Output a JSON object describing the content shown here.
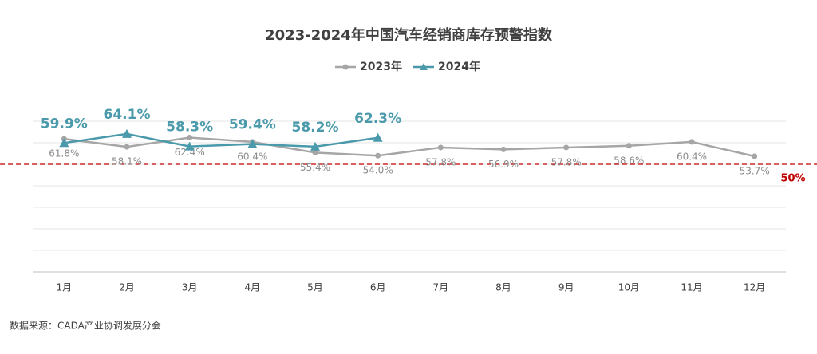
{
  "chart_data": {
    "type": "line",
    "title": "2023-2024年中国汽车经销商库存预警指数",
    "categories": [
      "1月",
      "2月",
      "3月",
      "4月",
      "5月",
      "6月",
      "7月",
      "8月",
      "9月",
      "10月",
      "11月",
      "12月"
    ],
    "series": [
      {
        "name": "2023年",
        "color": "#a6a6a6",
        "values": [
          61.8,
          58.1,
          62.4,
          60.4,
          55.4,
          54.0,
          57.8,
          56.9,
          57.8,
          58.6,
          60.4,
          53.7
        ],
        "value_labels": [
          "61.8%",
          "58.1%",
          "62.4%",
          "60.4%",
          "55.4%",
          "54.0%",
          "57.8%",
          "56.9%",
          "57.8%",
          "58.6%",
          "60.4%",
          "53.7%"
        ]
      },
      {
        "name": "2024年",
        "color": "#4a9aab",
        "values": [
          59.9,
          64.1,
          58.3,
          59.4,
          58.2,
          62.3,
          null,
          null,
          null,
          null,
          null,
          null
        ],
        "value_labels": [
          "59.9%",
          "64.1%",
          "58.3%",
          "59.4%",
          "58.2%",
          "62.3%",
          null,
          null,
          null,
          null,
          null,
          null
        ]
      }
    ],
    "ylim": [
      0,
      70
    ],
    "yticks": [
      0,
      10,
      20,
      30,
      40,
      50,
      60,
      70
    ],
    "grid": true,
    "reference_line": {
      "value": 50,
      "label": "50%",
      "color": "#c00000"
    },
    "source": "数据来源：CADA产业协调发展分会"
  }
}
